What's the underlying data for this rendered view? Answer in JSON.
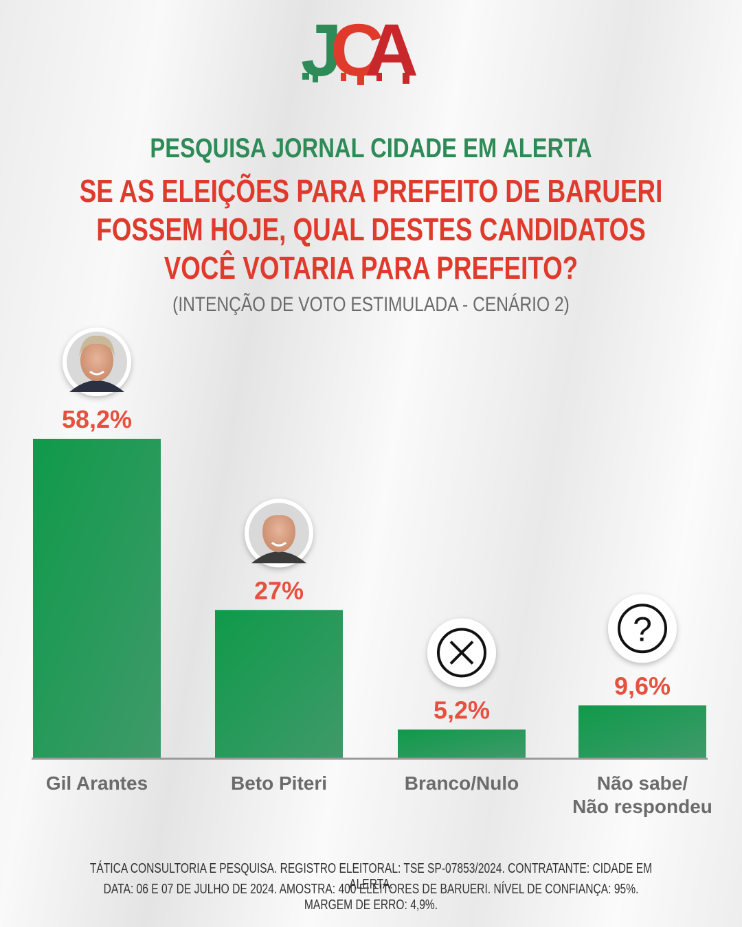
{
  "logo": {
    "letters": [
      "J",
      "C",
      "A"
    ],
    "colors": [
      "#2e8b57",
      "#e03a2c",
      "#c8282b"
    ]
  },
  "header": {
    "pollster_title": "PESQUISA JORNAL CIDADE EM ALERTA",
    "question_lines": [
      "SE AS ELEIÇÕES PARA PREFEITO DE BARUERI",
      "FOSSEM HOJE, QUAL DESTES CANDIDATOS",
      "VOCÊ VOTARIA PARA PREFEITO?"
    ],
    "subtitle": "(INTENÇÃO DE VOTO ESTIMULADA - CENÁRIO 2)"
  },
  "chart_data": {
    "type": "bar",
    "categories": [
      "Gil Arantes",
      "Beto Piteri",
      "Branco/Nulo",
      "Não sabe/\nNão respondeu"
    ],
    "values": [
      58.2,
      27,
      5.2,
      9.6
    ],
    "value_labels": [
      "58,2%",
      "27%",
      "5,2%",
      "9,6%"
    ],
    "icons": [
      "avatar-gil-arantes",
      "avatar-beto-piteri",
      "x-circle-icon",
      "question-circle-icon"
    ],
    "ylim": [
      0,
      60
    ],
    "bar_color": "#1f9a55",
    "label_color": "#e8503e",
    "grid": false
  },
  "footer": {
    "line1": "TÁTICA CONSULTORIA E PESQUISA. REGISTRO ELEITORAL: TSE SP-07853/2024. CONTRATANTE: CIDADE EM ALERTA.",
    "line2": "DATA: 06 E 07 DE JULHO DE 2024. AMOSTRA: 400 ELEITORES DE BARUERI. NÍVEL DE CONFIANÇA: 95%. MARGEM DE ERRO: 4,9%."
  }
}
